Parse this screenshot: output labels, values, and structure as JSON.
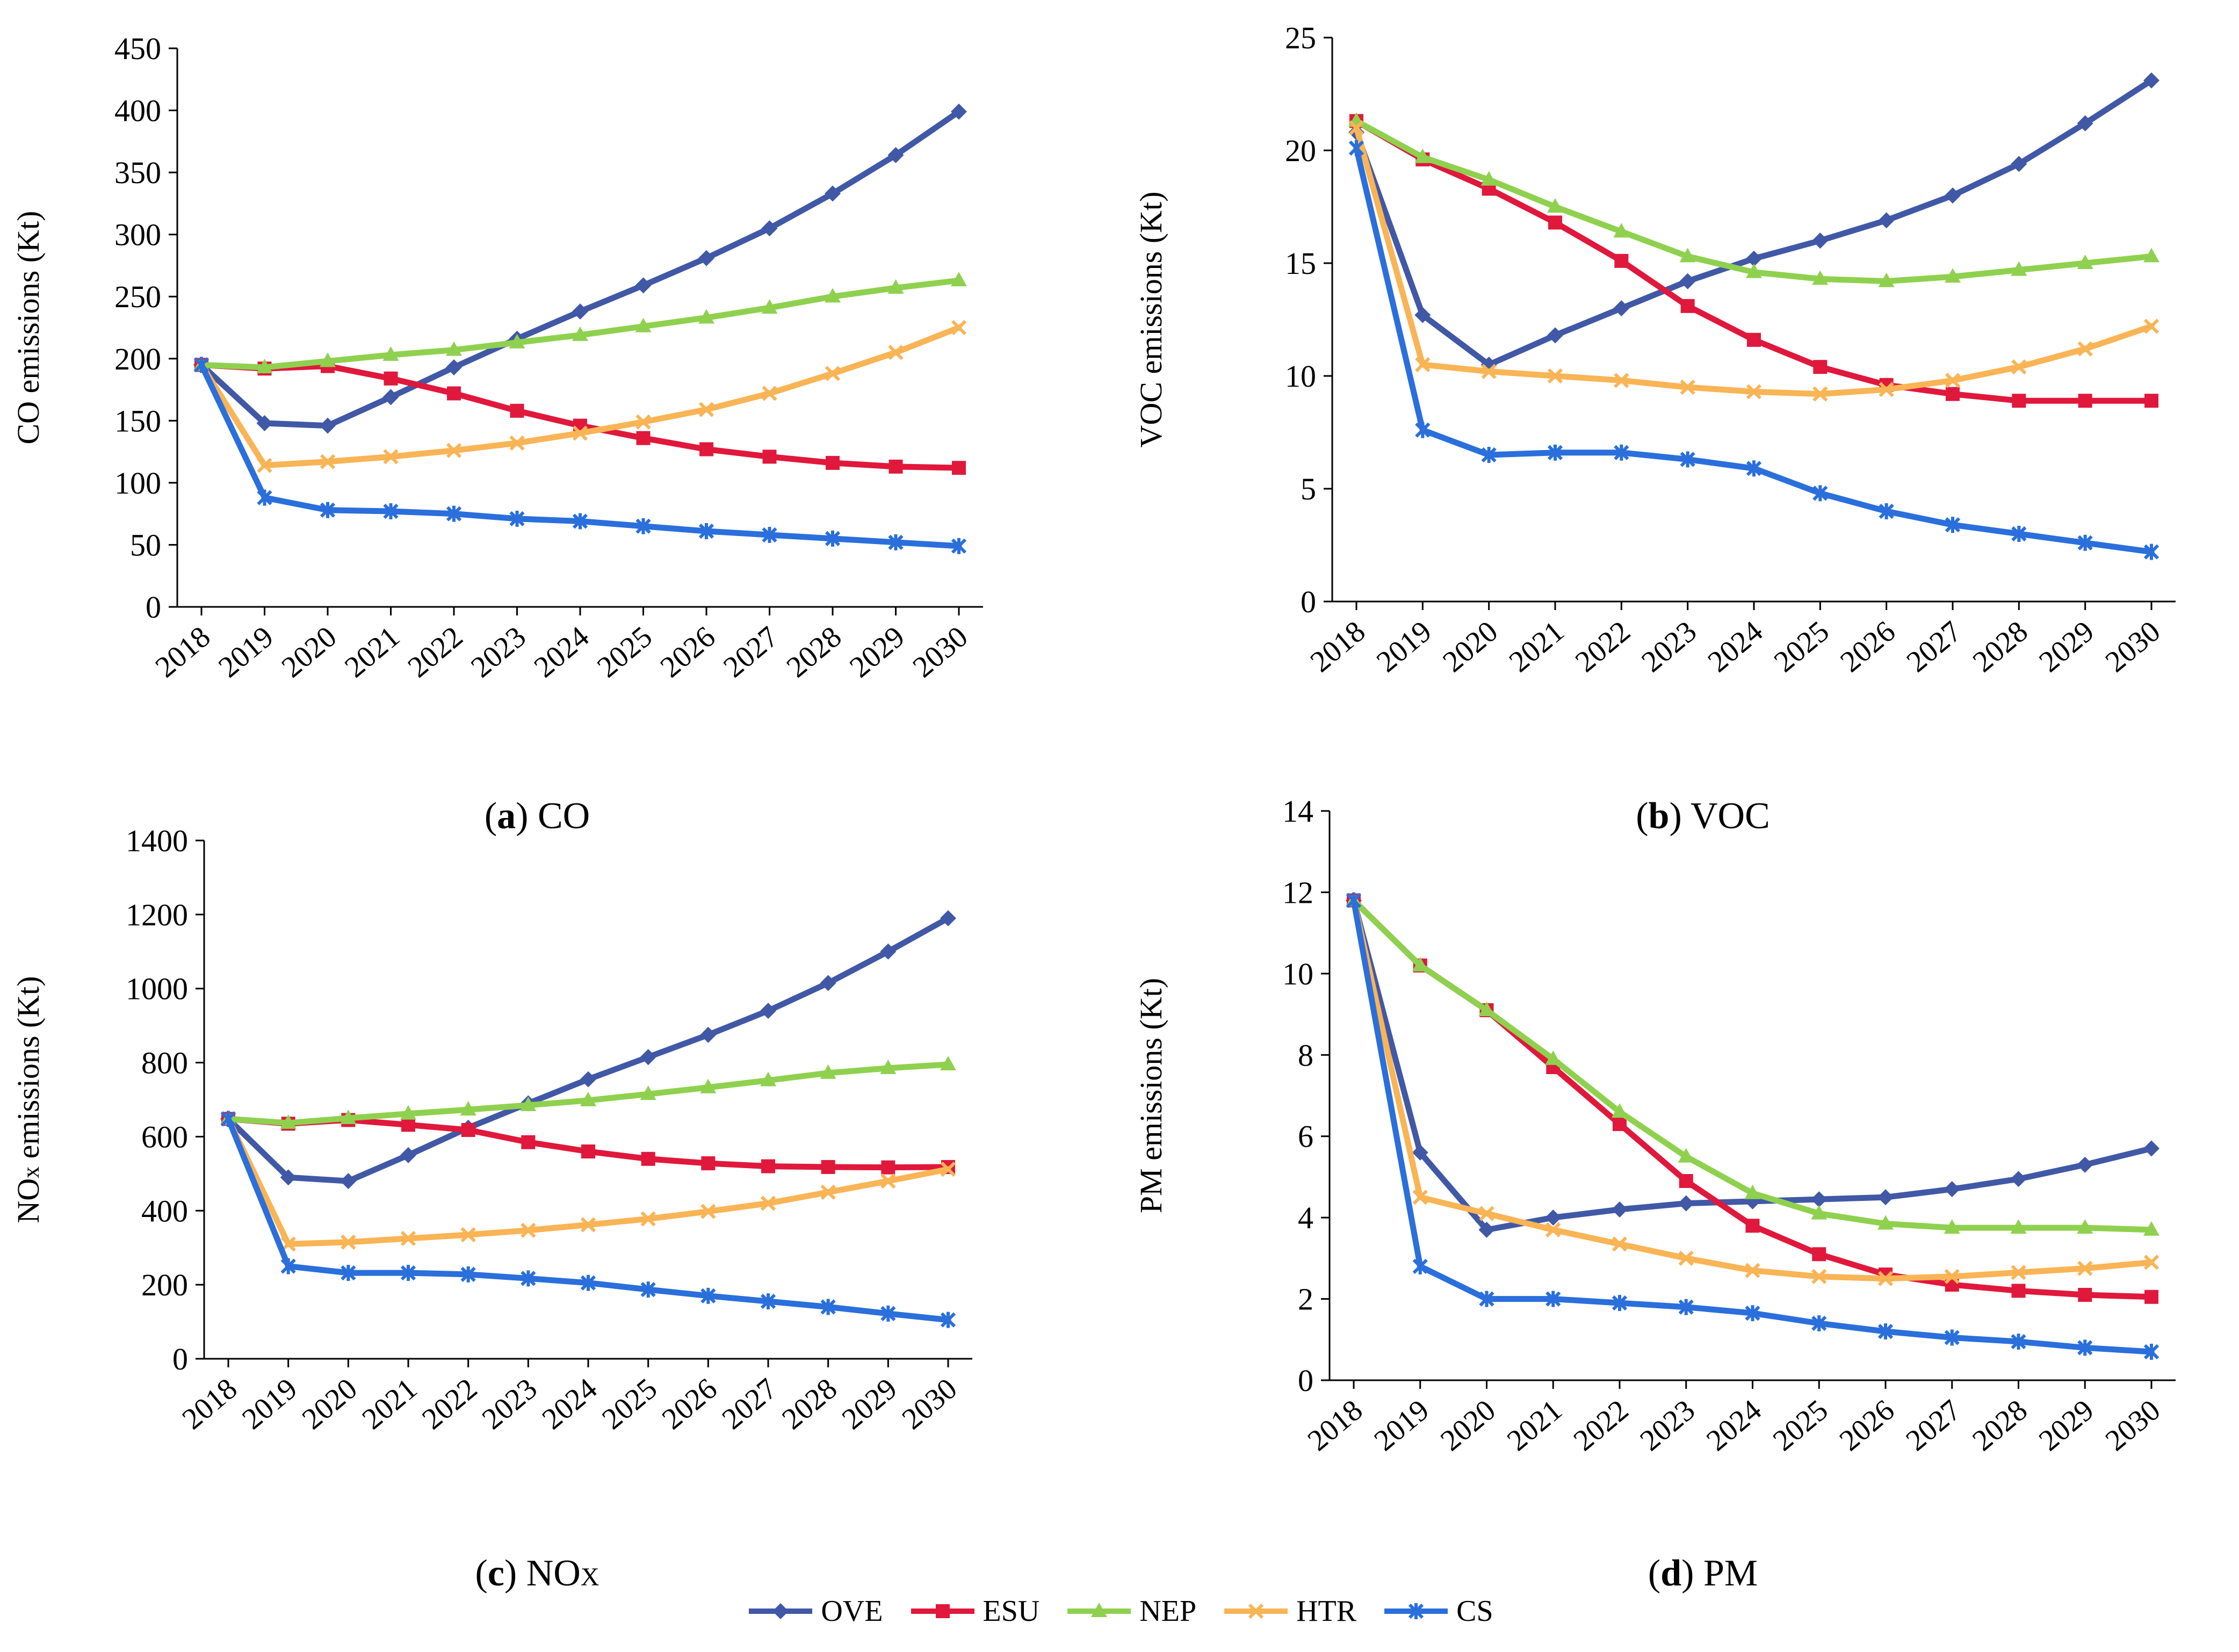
{
  "chart_data": [
    {
      "id": "a",
      "type": "line",
      "caption_letter": "a",
      "caption_text": "CO",
      "ylabel": "CO emissions (Kt)",
      "ylabel_sub": "",
      "ylabel_rest": "",
      "ylim": [
        0,
        450
      ],
      "yticks": [
        0,
        50,
        100,
        150,
        200,
        250,
        300,
        350,
        400,
        450
      ],
      "x": [
        "2018",
        "2019",
        "2020",
        "2021",
        "2022",
        "2023",
        "2024",
        "2025",
        "2026",
        "2027",
        "2028",
        "2029",
        "2030"
      ],
      "series": [
        {
          "name": "OVE",
          "values": [
            195,
            148,
            146,
            169,
            193,
            216,
            238,
            259,
            281,
            305,
            333,
            364,
            399
          ]
        },
        {
          "name": "ESU",
          "values": [
            195,
            192,
            194,
            184,
            172,
            158,
            146,
            136,
            127,
            121,
            116,
            113,
            112
          ]
        },
        {
          "name": "NEP",
          "values": [
            195,
            193,
            198,
            203,
            207,
            213,
            219,
            226,
            233,
            241,
            250,
            257,
            263
          ]
        },
        {
          "name": "HTR",
          "values": [
            195,
            114,
            117,
            121,
            126,
            132,
            140,
            149,
            159,
            172,
            188,
            205,
            225
          ]
        },
        {
          "name": "CS",
          "values": [
            195,
            88,
            78,
            77,
            75,
            71,
            69,
            65,
            61,
            58,
            55,
            52,
            49
          ]
        }
      ]
    },
    {
      "id": "b",
      "type": "line",
      "caption_letter": "b",
      "caption_text": "VOC",
      "ylabel": "VOC emissions (Kt)",
      "ylabel_sub": "",
      "ylabel_rest": "",
      "ylim": [
        0,
        25
      ],
      "yticks": [
        0,
        5,
        10,
        15,
        20,
        25
      ],
      "x": [
        "2018",
        "2019",
        "2020",
        "2021",
        "2022",
        "2023",
        "2024",
        "2025",
        "2026",
        "2027",
        "2028",
        "2029",
        "2030"
      ],
      "series": [
        {
          "name": "OVE",
          "values": [
            20.8,
            12.7,
            10.5,
            11.8,
            13.0,
            14.2,
            15.2,
            16.0,
            16.9,
            18.0,
            19.4,
            21.2,
            23.1
          ]
        },
        {
          "name": "ESU",
          "values": [
            21.3,
            19.6,
            18.3,
            16.8,
            15.1,
            13.1,
            11.6,
            10.4,
            9.6,
            9.2,
            8.9,
            8.9,
            8.9
          ]
        },
        {
          "name": "NEP",
          "values": [
            21.3,
            19.7,
            18.7,
            17.5,
            16.4,
            15.3,
            14.6,
            14.3,
            14.2,
            14.4,
            14.7,
            15.0,
            15.3
          ]
        },
        {
          "name": "HTR",
          "values": [
            21.0,
            10.5,
            10.2,
            10.0,
            9.8,
            9.5,
            9.3,
            9.2,
            9.4,
            9.8,
            10.4,
            11.2,
            12.2
          ]
        },
        {
          "name": "CS",
          "values": [
            20.1,
            7.6,
            6.5,
            6.6,
            6.6,
            6.3,
            5.9,
            4.8,
            4.0,
            3.4,
            3.0,
            2.6,
            2.2
          ]
        }
      ]
    },
    {
      "id": "c",
      "type": "line",
      "caption_letter": "c",
      "caption_text": "NO",
      "caption_sub": "X",
      "ylabel": "NO",
      "ylabel_sub": "x",
      "ylabel_rest": " emissions (Kt)",
      "ylim": [
        0,
        1400
      ],
      "yticks": [
        0,
        200,
        400,
        600,
        800,
        1000,
        1200,
        1400
      ],
      "x": [
        "2018",
        "2019",
        "2020",
        "2021",
        "2022",
        "2023",
        "2024",
        "2025",
        "2026",
        "2027",
        "2028",
        "2029",
        "2030"
      ],
      "series": [
        {
          "name": "OVE",
          "values": [
            648,
            490,
            480,
            550,
            624,
            690,
            755,
            815,
            875,
            940,
            1015,
            1100,
            1190
          ]
        },
        {
          "name": "ESU",
          "values": [
            648,
            635,
            645,
            632,
            618,
            585,
            560,
            540,
            528,
            520,
            518,
            517,
            518
          ]
        },
        {
          "name": "NEP",
          "values": [
            648,
            637,
            650,
            662,
            673,
            685,
            698,
            715,
            733,
            752,
            772,
            785,
            795
          ]
        },
        {
          "name": "HTR",
          "values": [
            648,
            310,
            315,
            325,
            335,
            347,
            362,
            378,
            398,
            420,
            450,
            480,
            512
          ]
        },
        {
          "name": "CS",
          "values": [
            648,
            250,
            232,
            232,
            228,
            217,
            205,
            187,
            170,
            155,
            140,
            122,
            105
          ]
        }
      ]
    },
    {
      "id": "d",
      "type": "line",
      "caption_letter": "d",
      "caption_text": "PM",
      "ylabel": "PM emissions (Kt)",
      "ylabel_sub": "",
      "ylabel_rest": "",
      "ylim": [
        0,
        14
      ],
      "yticks": [
        0,
        2,
        4,
        6,
        8,
        10,
        12,
        14
      ],
      "x": [
        "2018",
        "2019",
        "2020",
        "2021",
        "2022",
        "2023",
        "2024",
        "2025",
        "2026",
        "2027",
        "2028",
        "2029",
        "2030"
      ],
      "series": [
        {
          "name": "OVE",
          "values": [
            11.8,
            5.6,
            3.7,
            4.0,
            4.2,
            4.35,
            4.4,
            4.45,
            4.5,
            4.7,
            4.95,
            5.3,
            5.7
          ]
        },
        {
          "name": "ESU",
          "values": [
            11.8,
            10.2,
            9.1,
            7.7,
            6.3,
            4.9,
            3.8,
            3.1,
            2.6,
            2.35,
            2.2,
            2.1,
            2.05
          ]
        },
        {
          "name": "NEP",
          "values": [
            11.8,
            10.2,
            9.1,
            7.9,
            6.6,
            5.5,
            4.6,
            4.1,
            3.85,
            3.75,
            3.75,
            3.75,
            3.7
          ]
        },
        {
          "name": "HTR",
          "values": [
            11.8,
            4.5,
            4.1,
            3.7,
            3.35,
            3.0,
            2.7,
            2.55,
            2.5,
            2.55,
            2.65,
            2.75,
            2.9
          ]
        },
        {
          "name": "CS",
          "values": [
            11.8,
            2.8,
            2.0,
            2.0,
            1.9,
            1.8,
            1.65,
            1.4,
            1.2,
            1.05,
            0.95,
            0.8,
            0.7
          ]
        }
      ]
    }
  ],
  "legend": [
    {
      "name": "OVE",
      "color": "#4158a6",
      "marker": "diamond"
    },
    {
      "name": "ESU",
      "color": "#e0183c",
      "marker": "square"
    },
    {
      "name": "NEP",
      "color": "#8fd14f",
      "marker": "triangle"
    },
    {
      "name": "HTR",
      "color": "#f9b455",
      "marker": "x"
    },
    {
      "name": "CS",
      "color": "#2a6fdb",
      "marker": "star"
    }
  ]
}
